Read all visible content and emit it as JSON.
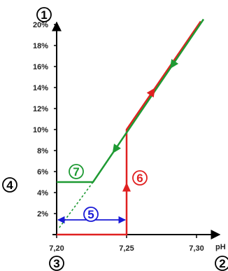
{
  "colors": {
    "axis": "#000000",
    "decreasing_path": "#1e9a33",
    "increasing_path": "#e02020",
    "hysteresis_band": "#1a1ad6",
    "marker_neutral": "#000000"
  },
  "markers": {
    "m1": "1",
    "m2": "2",
    "m3": "3",
    "m4": "4",
    "m5": "5",
    "m6": "6",
    "m7": "7"
  },
  "x_axis": {
    "unit": "pH",
    "ticks": [
      "7,20",
      "7,25",
      "7,30"
    ]
  },
  "y_axis": {
    "ticks": [
      "20%",
      "18%",
      "16%",
      "14%",
      "12%",
      "10%",
      "8%",
      "6%",
      "4%",
      "2%"
    ]
  },
  "chart_data": {
    "type": "line",
    "xlim": [
      7.2,
      7.305
    ],
    "ylim": [
      0,
      22
    ],
    "series": [
      {
        "color": "green",
        "points": [
          [
            7.305,
            20.5
          ],
          [
            7.226,
            5
          ],
          [
            7.2,
            5
          ]
        ],
        "extension_dashed": [
          [
            7.226,
            5
          ],
          [
            7.201,
            0.5
          ]
        ]
      },
      {
        "color": "red",
        "points": [
          [
            7.2,
            0
          ],
          [
            7.25,
            0
          ],
          [
            7.25,
            10
          ],
          [
            7.303,
            20.3
          ]
        ]
      }
    ],
    "annotations": [
      {
        "marker": "5",
        "from_x": 7.2,
        "to_x": 7.25,
        "y": 1
      }
    ]
  }
}
